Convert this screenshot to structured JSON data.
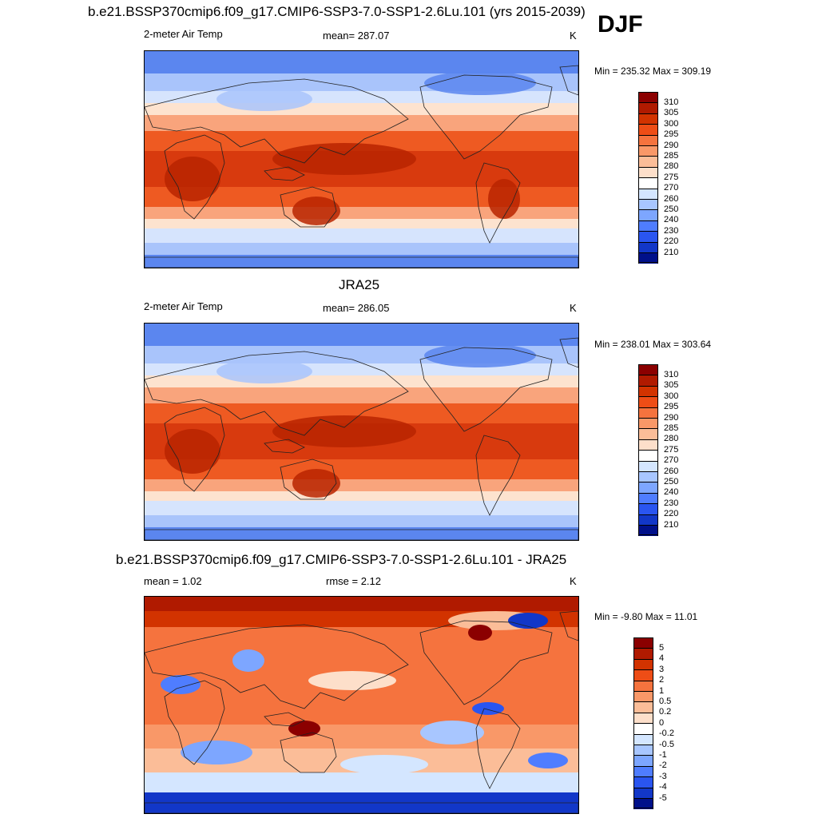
{
  "season": "DJF",
  "panels": [
    {
      "title": "b.e21.BSSP370cmip6.f09_g17.CMIP6-SSP3-7.0-SSP1-2.6Lu.101 (yrs 2015-2039)",
      "left_label": "2-meter Air Temp",
      "center_label": "mean= 287.07",
      "units": "K",
      "minmax": "Min = 235.32 Max = 309.19"
    },
    {
      "title": "JRA25",
      "left_label": "2-meter Air Temp",
      "center_label": "mean= 286.05",
      "units": "K",
      "minmax": "Min = 238.01 Max = 303.64"
    },
    {
      "title": "b.e21.BSSP370cmip6.f09_g17.CMIP6-SSP3-7.0-SSP1-2.6Lu.101 - JRA25",
      "left_label": "mean =   1.02",
      "center_label": "rmse =   2.12",
      "units": "K",
      "minmax": "Min =  -9.80 Max =  11.01"
    }
  ],
  "colorbars": {
    "temperature": {
      "levels": [
        "310",
        "305",
        "300",
        "295",
        "290",
        "285",
        "280",
        "275",
        "270",
        "260",
        "250",
        "240",
        "230",
        "220",
        "210"
      ],
      "colors": [
        "#8b0000",
        "#b01a00",
        "#d23300",
        "#ee4d16",
        "#f5733e",
        "#f99868",
        "#fbbd98",
        "#fddfca",
        "#ffffff",
        "#d4e6ff",
        "#a8c6ff",
        "#7da6ff",
        "#4f7dff",
        "#2a55f0",
        "#1237c8",
        "#00108a"
      ]
    },
    "difference": {
      "levels": [
        "5",
        "4",
        "3",
        "2",
        "1",
        "0.5",
        "0.2",
        "0",
        "-0.2",
        "-0.5",
        "-1",
        "-2",
        "-3",
        "-4",
        "-5"
      ],
      "colors": [
        "#8b0000",
        "#b01a00",
        "#d23300",
        "#ee4d16",
        "#f5733e",
        "#f99868",
        "#fbbd98",
        "#fddfca",
        "#ffffff",
        "#d4e6ff",
        "#a8c6ff",
        "#7da6ff",
        "#4f7dff",
        "#2a55f0",
        "#1237c8",
        "#00108a"
      ]
    }
  },
  "map_colors": {
    "polar": "#5b86ef",
    "cold": "#a9c4fb",
    "cool": "#d6e4fd",
    "mild": "#fde3cf",
    "warm": "#f9a47c",
    "hot": "#ee5a22",
    "hotter": "#d83a0e",
    "hottest": "#b82400",
    "land_outline": "#222222"
  }
}
